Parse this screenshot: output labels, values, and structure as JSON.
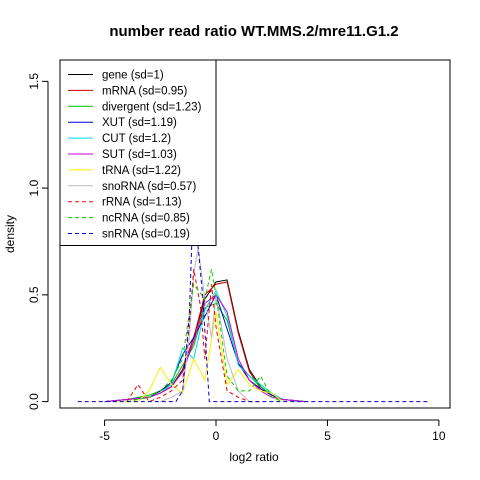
{
  "chart_data": {
    "type": "line",
    "title": "number read ratio WT.MMS.2/mre11.G1.2",
    "xlabel": "log2 ratio",
    "ylabel": "density",
    "xlim": [
      -7,
      10.5
    ],
    "ylim": [
      -0.03,
      1.6
    ],
    "x_ticks": [
      -5,
      0,
      5,
      10
    ],
    "x_tick_labels": [
      "-5",
      "0",
      "5",
      "10"
    ],
    "y_ticks": [
      0,
      0.5,
      1.0,
      1.5
    ],
    "y_tick_labels": [
      "0.0",
      "0.5",
      "1.0",
      "1.5"
    ],
    "grid": false,
    "legend_position": "top-left",
    "series": [
      {
        "name": "gene (sd=1)",
        "color": "#000000",
        "dash": "solid",
        "x": [
          -5,
          -4,
          -3,
          -2.5,
          -2,
          -1.5,
          -1,
          -0.5,
          0,
          0.5,
          1,
          1.5,
          2,
          2.5,
          3,
          3.5,
          4
        ],
        "y": [
          0,
          0.01,
          0.02,
          0.04,
          0.07,
          0.15,
          0.3,
          0.48,
          0.56,
          0.57,
          0.33,
          0.15,
          0.07,
          0.03,
          0.01,
          0.005,
          0
        ]
      },
      {
        "name": "mRNA (sd=0.95)",
        "color": "#cc0000",
        "dash": "solid",
        "x": [
          -5,
          -4,
          -3,
          -2.5,
          -2,
          -1.5,
          -1,
          -0.5,
          0,
          0.5,
          1,
          1.5,
          2,
          2.5,
          3,
          3.5,
          4
        ],
        "y": [
          0,
          0.01,
          0.02,
          0.04,
          0.07,
          0.14,
          0.3,
          0.5,
          0.55,
          0.56,
          0.32,
          0.14,
          0.06,
          0.03,
          0.01,
          0.005,
          0
        ]
      },
      {
        "name": "divergent (sd=1.23)",
        "color": "#00bb00",
        "dash": "solid",
        "x": [
          -5,
          -4,
          -3,
          -2.5,
          -2,
          -1.5,
          -1,
          -0.5,
          0,
          0.5,
          1,
          1.5,
          2,
          2.5,
          3,
          3.5,
          4
        ],
        "y": [
          0,
          0.01,
          0.03,
          0.05,
          0.08,
          0.17,
          0.26,
          0.44,
          0.46,
          0.38,
          0.18,
          0.12,
          0.07,
          0.03,
          0.01,
          0.005,
          0
        ]
      },
      {
        "name": "XUT (sd=1.19)",
        "color": "#0000cc",
        "dash": "solid",
        "x": [
          -5,
          -4,
          -3,
          -2.5,
          -2,
          -1.5,
          -1,
          -0.5,
          0,
          0.5,
          1,
          1.5,
          2,
          2.5,
          3,
          3.5,
          4
        ],
        "y": [
          0,
          0.01,
          0.02,
          0.05,
          0.09,
          0.22,
          0.3,
          0.4,
          0.5,
          0.34,
          0.18,
          0.1,
          0.06,
          0.03,
          0.01,
          0.005,
          0
        ]
      },
      {
        "name": "CUT (sd=1.2)",
        "color": "#00dddd",
        "dash": "solid",
        "x": [
          -5,
          -4,
          -3,
          -2.5,
          -2,
          -1.5,
          -1,
          -0.5,
          0,
          0.5,
          1,
          1.5,
          2,
          2.5,
          3,
          3.5,
          4
        ],
        "y": [
          0,
          0.01,
          0.02,
          0.04,
          0.08,
          0.25,
          0.2,
          0.43,
          0.52,
          0.4,
          0.17,
          0.12,
          0.08,
          0.04,
          0.01,
          0.005,
          0
        ]
      },
      {
        "name": "SUT (sd=1.03)",
        "color": "#cc00cc",
        "dash": "solid",
        "x": [
          -5,
          -4,
          -3,
          -2.5,
          -2,
          -1.5,
          -1,
          -0.5,
          0,
          0.5,
          1,
          1.5,
          2,
          2.5,
          3,
          3.5,
          4
        ],
        "y": [
          0,
          0.01,
          0.02,
          0.04,
          0.07,
          0.14,
          0.28,
          0.46,
          0.5,
          0.42,
          0.2,
          0.1,
          0.05,
          0.02,
          0.01,
          0.005,
          0
        ]
      },
      {
        "name": "tRNA (sd=1.22)",
        "color": "#ffee00",
        "dash": "solid",
        "x": [
          -4.5,
          -3.5,
          -3,
          -2.5,
          -2,
          -1.5,
          -1,
          -0.5,
          0,
          0.5,
          1,
          1.5,
          2,
          2.5,
          3
        ],
        "y": [
          0,
          0,
          0.05,
          0.16,
          0.08,
          0.04,
          0.2,
          0.1,
          0.42,
          0.08,
          0.15,
          0.08,
          0.05,
          0.04,
          0
        ]
      },
      {
        "name": "snoRNA (sd=0.57)",
        "color": "#bbbbbb",
        "dash": "solid",
        "x": [
          -2.5,
          -2,
          -1.5,
          -1.2,
          -1,
          -0.8,
          -0.5,
          -0.2,
          0,
          0.5,
          1,
          1.5
        ],
        "y": [
          0,
          0.02,
          0.05,
          0.3,
          0.6,
          0.72,
          0.48,
          0.3,
          0.5,
          0.2,
          0.05,
          0
        ]
      },
      {
        "name": "rRNA (sd=1.13)",
        "color": "#ee0000",
        "dash": "dashed",
        "x": [
          -4,
          -3.5,
          -3,
          -2.5,
          -2,
          -1.5,
          -1.2,
          -1,
          -0.7,
          -0.5,
          -0.2,
          0,
          0.5,
          1,
          1.5,
          2
        ],
        "y": [
          0,
          0.08,
          0,
          0.02,
          0.05,
          0.1,
          0.35,
          0.62,
          0.45,
          0.2,
          0.55,
          0.35,
          0.05,
          0.02,
          0,
          0
        ]
      },
      {
        "name": "ncRNA (sd=0.85)",
        "color": "#00cc00",
        "dash": "dashed",
        "x": [
          -4,
          -3,
          -2.5,
          -2,
          -1.5,
          -1,
          -0.5,
          -0.2,
          0,
          0.5,
          1,
          1.5,
          2,
          2.5,
          3
        ],
        "y": [
          0,
          0.02,
          0.05,
          0.1,
          0.2,
          0.55,
          0.48,
          0.62,
          0.5,
          0.12,
          0.05,
          0.05,
          0.12,
          0.02,
          0
        ]
      },
      {
        "name": "snRNA (sd=0.19)",
        "color": "#0000cc",
        "dash": "dashed",
        "x": [
          -6.2,
          -2,
          -1.8,
          -1.5,
          -1.2,
          -1,
          -0.8,
          -0.6,
          -0.3,
          -0.2,
          0,
          0.5,
          9.6
        ],
        "y": [
          0,
          0,
          0,
          0.05,
          0.4,
          1.0,
          0.72,
          0.5,
          0.0,
          0.0,
          0.0,
          0,
          0
        ]
      }
    ]
  }
}
